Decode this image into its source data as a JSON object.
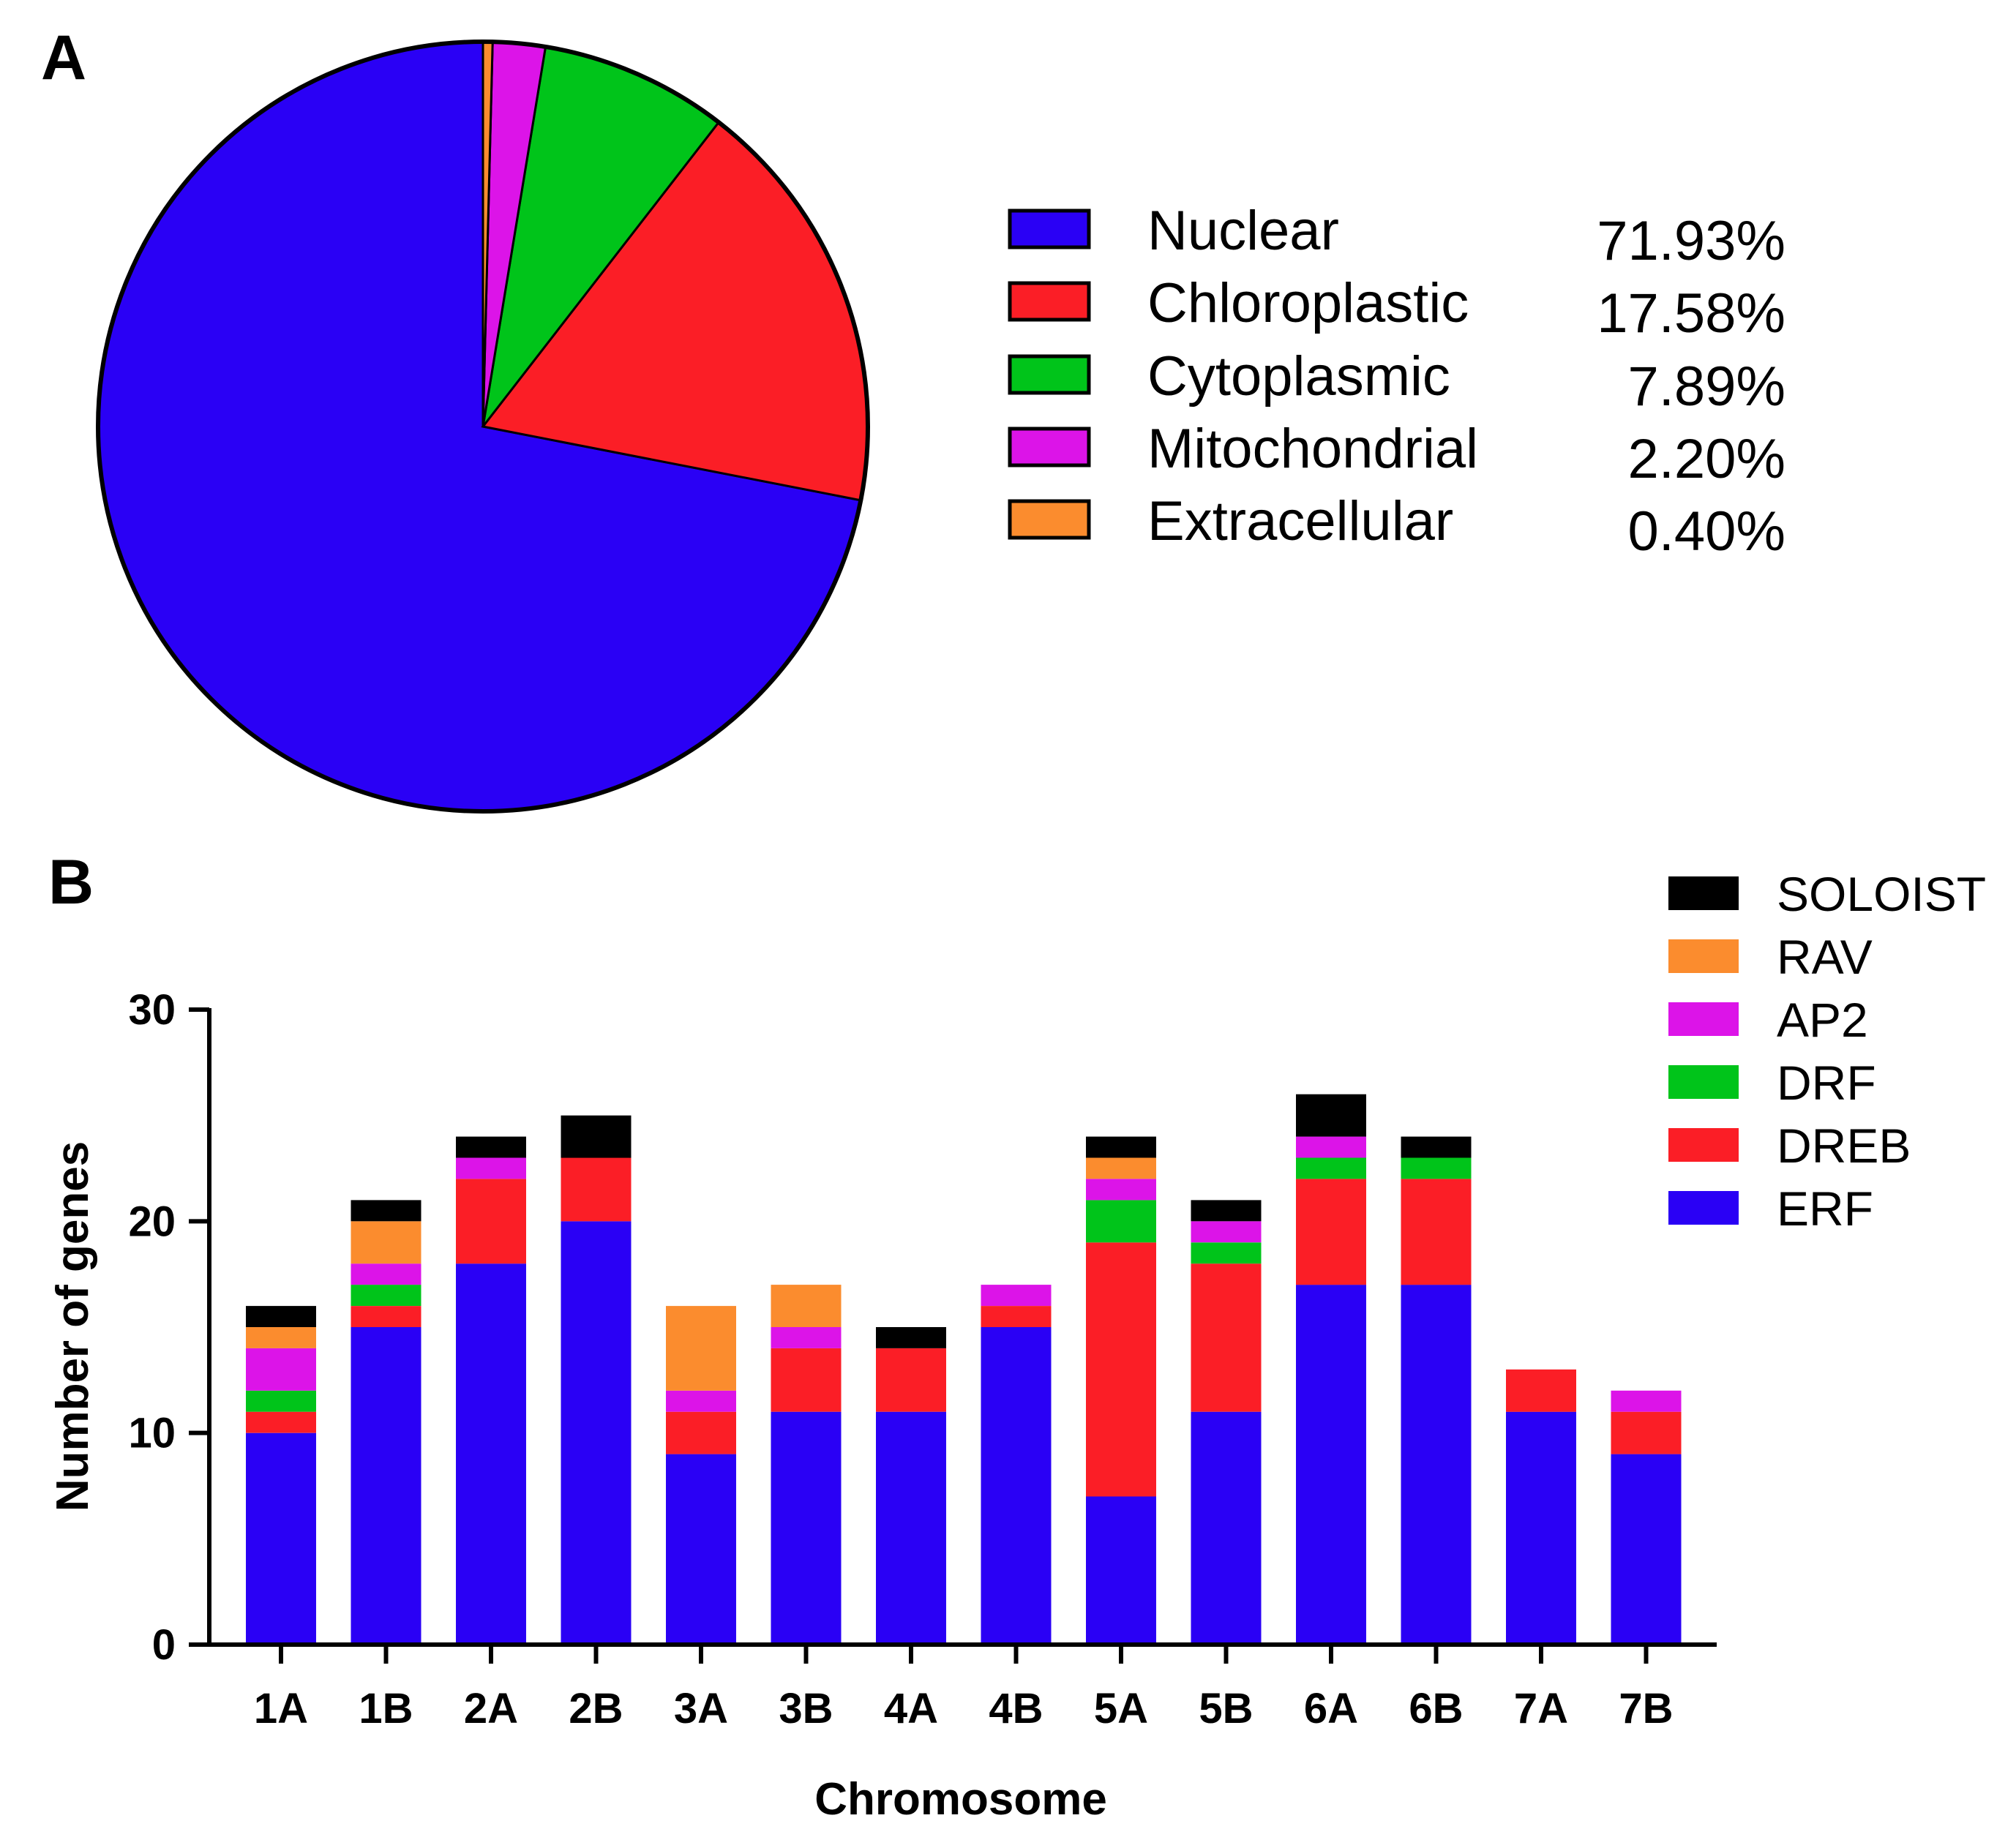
{
  "colors": {
    "Nuclear": "#2a00f5",
    "Chloroplastic": "#fb1e26",
    "Cytoplasmic": "#00c41a",
    "Mitochondrial": "#dc14e8",
    "Extracellular": "#fb8c2e",
    "ERF": "#2a00f5",
    "DREB": "#fb1e26",
    "DRF": "#00c41a",
    "AP2": "#dc14e8",
    "RAV": "#fb8c2e",
    "SOLOIST": "#000000"
  },
  "chart_data": [
    {
      "panel": "A",
      "type": "pie",
      "title": "",
      "legend_position": "right",
      "slices": [
        {
          "label": "Nuclear",
          "value": 71.93,
          "display": "71.93%"
        },
        {
          "label": "Chloroplastic",
          "value": 17.58,
          "display": "17.58%"
        },
        {
          "label": "Cytoplasmic",
          "value": 7.89,
          "display": "7.89%"
        },
        {
          "label": "Mitochondrial",
          "value": 2.2,
          "display": "2.20%"
        },
        {
          "label": "Extracellular",
          "value": 0.4,
          "display": "0.40%"
        }
      ]
    },
    {
      "panel": "B",
      "type": "bar",
      "stacked": true,
      "title": "",
      "xlabel": "Chromosome",
      "ylabel": "Number of genes",
      "ylim": [
        0,
        30
      ],
      "yticks": [
        0,
        10,
        20,
        30
      ],
      "legend_position": "top-right",
      "categories": [
        "1A",
        "1B",
        "2A",
        "2B",
        "3A",
        "3B",
        "4A",
        "4B",
        "5A",
        "5B",
        "6A",
        "6B",
        "7A",
        "7B"
      ],
      "series": [
        {
          "name": "ERF",
          "values": [
            10,
            15,
            18,
            20,
            9,
            11,
            11,
            15,
            7,
            11,
            17,
            17,
            11,
            9
          ]
        },
        {
          "name": "DREB",
          "values": [
            1,
            1,
            4,
            3,
            2,
            3,
            3,
            1,
            12,
            7,
            5,
            5,
            2,
            2
          ]
        },
        {
          "name": "DRF",
          "values": [
            1,
            1,
            0,
            0,
            0,
            0,
            0,
            0,
            2,
            1,
            1,
            1,
            0,
            0
          ]
        },
        {
          "name": "AP2",
          "values": [
            2,
            1,
            1,
            0,
            1,
            1,
            0,
            1,
            1,
            1,
            1,
            0,
            0,
            1
          ]
        },
        {
          "name": "RAV",
          "values": [
            1,
            2,
            0,
            0,
            4,
            2,
            0,
            0,
            1,
            0,
            0,
            0,
            0,
            0
          ]
        },
        {
          "name": "SOLOIST",
          "values": [
            1,
            1,
            1,
            2,
            0,
            0,
            1,
            0,
            1,
            1,
            2,
            1,
            0,
            0
          ]
        }
      ],
      "legend_order": [
        "SOLOIST",
        "RAV",
        "AP2",
        "DRF",
        "DREB",
        "ERF"
      ]
    }
  ]
}
